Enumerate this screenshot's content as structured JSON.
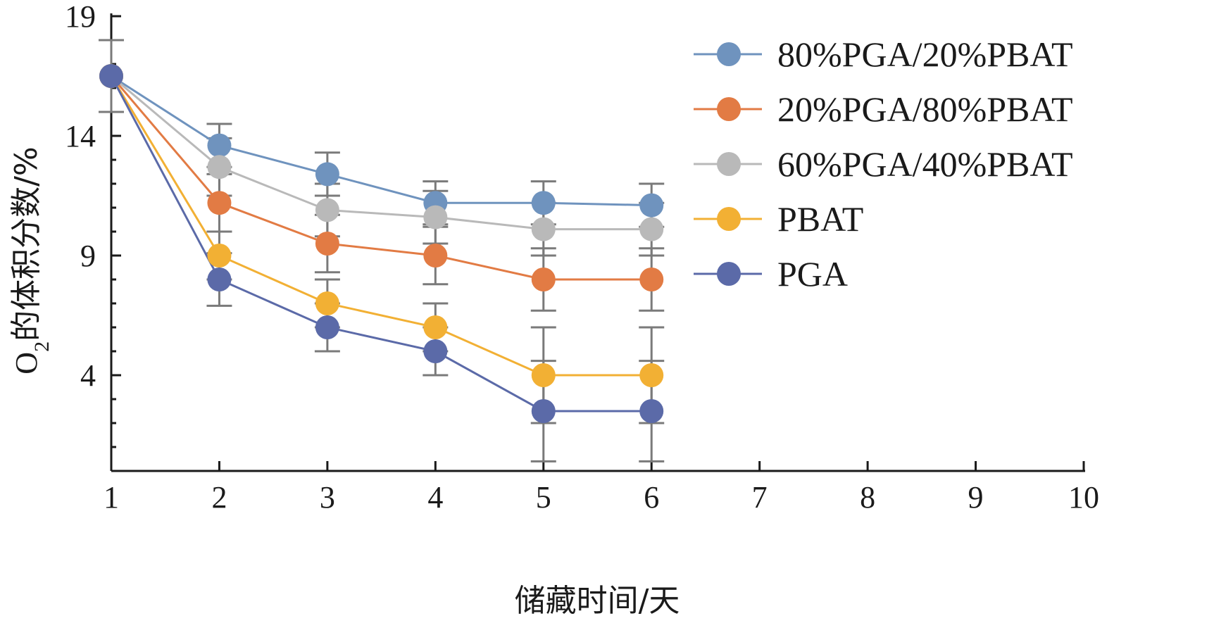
{
  "chart_data": {
    "type": "line",
    "title": "",
    "xlabel": "储藏时间/天",
    "ylabel_main": "O",
    "ylabel_sub": "2",
    "ylabel_rest": "的体积分数/%",
    "xlim": [
      1,
      10
    ],
    "ylim": [
      0,
      19
    ],
    "xticks": [
      1,
      2,
      3,
      4,
      5,
      6,
      7,
      8,
      9,
      10
    ],
    "yticks": [
      4,
      9,
      14,
      19
    ],
    "grid": false,
    "legend_position": "top-right",
    "x": [
      1,
      2,
      3,
      4,
      5,
      6
    ],
    "series": [
      {
        "name": "80%PGA/20%PBAT",
        "color": "#6f93be",
        "values": [
          16.5,
          13.6,
          12.4,
          11.2,
          11.2,
          11.1
        ],
        "error": [
          1.5,
          0.9,
          0.9,
          0.9,
          0.9,
          0.9
        ]
      },
      {
        "name": "20%PGA/80%PBAT",
        "color": "#e27b44",
        "values": [
          16.5,
          11.2,
          9.5,
          9.0,
          8.0,
          8.0
        ],
        "error": [
          1.5,
          1.2,
          1.2,
          1.2,
          1.3,
          1.3
        ]
      },
      {
        "name": "60%PGA/40%PBAT",
        "color": "#b9b9b9",
        "values": [
          16.5,
          12.7,
          10.9,
          10.6,
          10.1,
          10.1
        ],
        "error": [
          1.5,
          1.2,
          1.1,
          1.1,
          1.1,
          1.1
        ]
      },
      {
        "name": "PBAT",
        "color": "#f2b034",
        "values": [
          16.5,
          9.0,
          7.0,
          6.0,
          4.0,
          4.0
        ],
        "error": [
          1.5,
          1.0,
          1.0,
          1.0,
          2.0,
          2.0
        ]
      },
      {
        "name": "PGA",
        "color": "#5b6aa8",
        "values": [
          16.5,
          8.0,
          6.0,
          5.0,
          2.5,
          2.5
        ],
        "error": [
          1.5,
          1.1,
          1.0,
          1.0,
          2.1,
          2.1
        ]
      }
    ]
  }
}
